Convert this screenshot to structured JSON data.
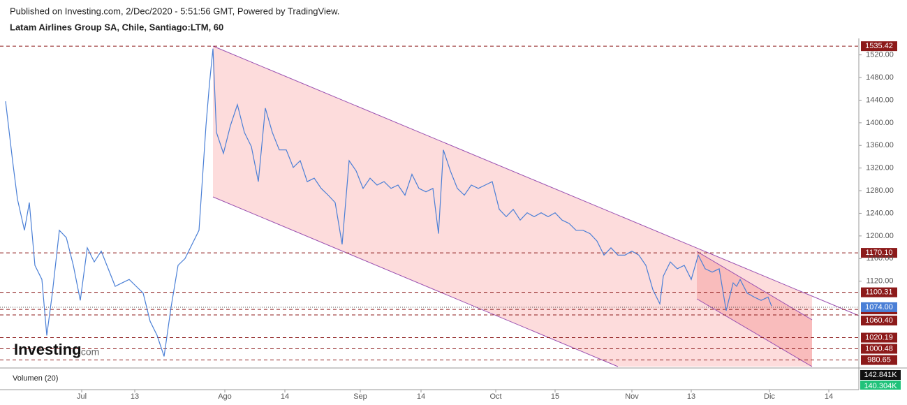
{
  "header": {
    "published": "Published on Investing.com, 2/Dec/2020 - 5:51:56 GMT, Powered by TradingView.",
    "symbol": "Latam Airlines Group SA, Chile, Santiago:LTM, 60"
  },
  "logo": {
    "name": "Investing",
    "suffix": ".com"
  },
  "chart_data": {
    "type": "line",
    "series": [
      {
        "name": "LTM",
        "color": "#4a7fd6",
        "x": [
          0.8,
          1.8,
          2.5,
          3.5,
          4.2,
          5,
          6,
          6.7,
          7.5,
          8.5,
          9.5,
          10.5,
          11.5,
          12.5,
          13.5,
          14.5,
          15.5,
          16.5,
          17.5,
          18.5,
          19.5,
          20.5,
          21.5,
          22.5,
          23.5,
          24.5,
          25.5,
          26.5,
          27.5,
          28.5,
          29.5,
          30,
          30.5,
          31,
          32,
          33,
          34,
          35,
          36,
          37,
          38,
          39,
          40,
          41,
          42,
          43,
          44,
          45,
          46,
          47,
          48,
          49,
          50,
          51,
          52,
          53,
          54,
          55,
          56,
          57,
          58,
          59,
          60,
          61,
          62,
          62.8,
          63.5,
          64.5,
          65.5,
          66.5,
          67.5,
          68.5,
          69.5,
          70.5,
          71.5,
          72.5,
          73.5,
          74.5,
          75.5,
          76.5,
          77.5,
          78.5,
          79.5,
          80.5,
          81.5,
          82.5,
          83.5,
          84.5,
          85.5,
          86.5,
          87.5,
          88.5,
          89.5,
          90.5,
          91.5,
          92.5,
          93.5,
          94.5,
          95,
          96,
          97,
          98,
          99,
          100,
          101,
          102,
          103,
          104,
          105,
          105.5,
          106,
          107,
          108,
          109,
          110,
          110.5
        ],
        "values": [
          1438,
          1333,
          1265,
          1210,
          1259,
          1148,
          1123,
          1024,
          1099,
          1210,
          1197,
          1148,
          1086,
          1179,
          1154,
          1173,
          1142,
          1111,
          1117,
          1123,
          1111,
          1099,
          1049,
          1024,
          987,
          1074,
          1148,
          1160,
          1185,
          1210,
          1395,
          1469,
          1531,
          1383,
          1346,
          1395,
          1432,
          1383,
          1358,
          1296,
          1426,
          1383,
          1352,
          1352,
          1321,
          1333,
          1296,
          1302,
          1284,
          1272,
          1259,
          1185,
          1333,
          1315,
          1284,
          1302,
          1290,
          1296,
          1284,
          1290,
          1272,
          1309,
          1284,
          1278,
          1284,
          1204,
          1352,
          1315,
          1284,
          1272,
          1290,
          1284,
          1290,
          1296,
          1247,
          1234,
          1247,
          1228,
          1241,
          1234,
          1241,
          1234,
          1241,
          1228,
          1222,
          1210,
          1210,
          1204,
          1191,
          1166,
          1179,
          1166,
          1166,
          1173,
          1166,
          1148,
          1105,
          1080,
          1129,
          1154,
          1142,
          1148,
          1123,
          1166,
          1142,
          1136,
          1142,
          1068,
          1117,
          1111,
          1123,
          1099,
          1092,
          1086,
          1092,
          1076
        ]
      }
    ],
    "xlim": [
      0,
      123
    ],
    "ylim": [
      969,
      1543
    ],
    "xticks": [
      {
        "value": 11.7,
        "label": "Jul"
      },
      {
        "value": 19.3,
        "label": "13"
      },
      {
        "value": 32.2,
        "label": "Ago"
      },
      {
        "value": 40.8,
        "label": "14"
      },
      {
        "value": 51.6,
        "label": "Sep"
      },
      {
        "value": 60.3,
        "label": "14"
      },
      {
        "value": 71.0,
        "label": "Oct"
      },
      {
        "value": 79.5,
        "label": "15"
      },
      {
        "value": 90.5,
        "label": "Nov"
      },
      {
        "value": 99.0,
        "label": "13"
      },
      {
        "value": 110.2,
        "label": "Dic"
      },
      {
        "value": 118.7,
        "label": "14"
      }
    ],
    "yticks": [
      {
        "value": 1120,
        "label": "1120.00"
      },
      {
        "value": 1160,
        "label": "1160.00"
      },
      {
        "value": 1200,
        "label": "1200.00"
      },
      {
        "value": 1240,
        "label": "1240.00"
      },
      {
        "value": 1280,
        "label": "1280.00"
      },
      {
        "value": 1320,
        "label": "1320.00"
      },
      {
        "value": 1360,
        "label": "1360.00"
      },
      {
        "value": 1400,
        "label": "1400.00"
      },
      {
        "value": 1440,
        "label": "1440.00"
      },
      {
        "value": 1480,
        "label": "1480.00"
      },
      {
        "value": 1520,
        "label": "1520.00"
      }
    ],
    "levels": [
      1535.42,
      {
        "value": 1170.1,
        "label": "1170.10"
      },
      1100.31,
      1070.14,
      {
        "value": 1060.4,
        "label": "1060.40"
      },
      1020.19,
      1000.48,
      980.65
    ],
    "level_color": "#8c1a1a",
    "last_price": {
      "value": 1074,
      "label": "1074.00"
    },
    "volume_label": "Volumen (20)",
    "volume_value_labels": [
      "142.841K",
      "140.304K"
    ]
  }
}
